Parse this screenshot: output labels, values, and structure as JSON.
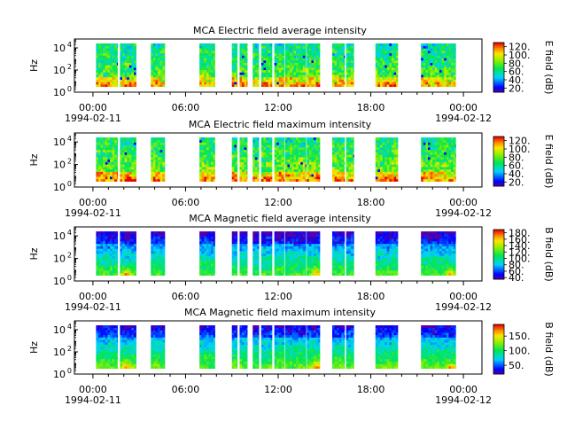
{
  "chart_data": [
    {
      "type": "heatmap",
      "title": "MCA  Electric field average intensity",
      "ylabel": "Hz",
      "colorbar_label": "E field (dB)",
      "colorbar_ticks": [
        "20.",
        "40.",
        "60.",
        "80.",
        "100.",
        "120."
      ],
      "colorbar_range": [
        10,
        130
      ],
      "field": "E",
      "kind": "avg"
    },
    {
      "type": "heatmap",
      "title": "MCA  Electric field maximum intensity",
      "ylabel": "Hz",
      "colorbar_label": "E field (dB)",
      "colorbar_ticks": [
        "20.",
        "40.",
        "60.",
        "80.",
        "100.",
        "120."
      ],
      "colorbar_range": [
        10,
        130
      ],
      "field": "E",
      "kind": "max"
    },
    {
      "type": "heatmap",
      "title": "MCA  Magnetic field average intensity",
      "ylabel": "Hz",
      "colorbar_label": "B field (dB)",
      "colorbar_ticks": [
        "40.",
        "60.",
        "80.",
        "100.",
        "120.",
        "140.",
        "160.",
        "180."
      ],
      "colorbar_range": [
        35,
        190
      ],
      "field": "B",
      "kind": "avg"
    },
    {
      "type": "heatmap",
      "title": "MCA  Magnetic field maximum intensity",
      "ylabel": "Hz",
      "colorbar_label": "B field (dB)",
      "colorbar_ticks": [
        "50.",
        "100.",
        "150."
      ],
      "colorbar_range": [
        20,
        190
      ],
      "field": "B",
      "kind": "max"
    }
  ],
  "xaxis": {
    "ticks": [
      {
        "hour": 0,
        "time": "00:00",
        "date": "1994-02-11"
      },
      {
        "hour": 6,
        "time": "06:00",
        "date": ""
      },
      {
        "hour": 12,
        "time": "12:00",
        "date": ""
      },
      {
        "hour": 18,
        "time": "18:00",
        "date": ""
      },
      {
        "hour": 24,
        "time": "00:00",
        "date": "1994-02-12"
      }
    ],
    "range_hours": [
      -1.2,
      25.2
    ]
  },
  "yaxis": {
    "ticks": [
      {
        "exp": 0,
        "label": "10",
        "sup": "0"
      },
      {
        "exp": 2,
        "label": "10",
        "sup": "2"
      },
      {
        "exp": 4,
        "label": "10",
        "sup": "4"
      }
    ],
    "range_log10": [
      0,
      4.8
    ],
    "data_log10": [
      0.5,
      4.4
    ]
  },
  "data_intervals_hours": [
    [
      0.2,
      1.6
    ],
    [
      1.75,
      2.8
    ],
    [
      3.75,
      4.65
    ],
    [
      6.9,
      7.9
    ],
    [
      9.0,
      9.35
    ],
    [
      9.5,
      10.0
    ],
    [
      10.35,
      10.75
    ],
    [
      10.9,
      11.6
    ],
    [
      11.75,
      12.4
    ],
    [
      12.45,
      13.0
    ],
    [
      13.0,
      13.8
    ],
    [
      13.85,
      14.7
    ],
    [
      15.5,
      16.3
    ],
    [
      16.4,
      16.9
    ],
    [
      18.3,
      19.75
    ],
    [
      21.25,
      23.5
    ]
  ]
}
